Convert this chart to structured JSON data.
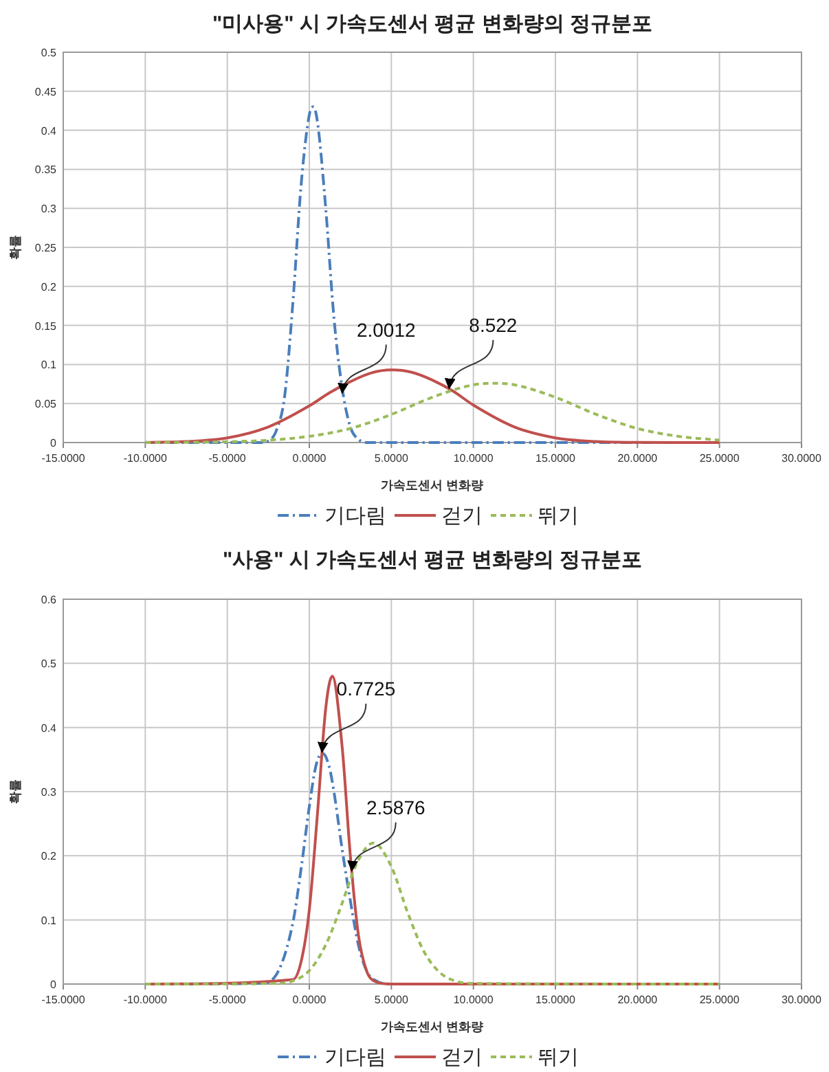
{
  "chart_data": [
    {
      "type": "line",
      "title": "\"미사용\" 시 가속도센서 평균 변화량의 정규분포",
      "xlabel": "가속도센서 변화량",
      "ylabel": "확률",
      "xlim": [
        -15,
        30
      ],
      "xticks": [
        {
          "value": -15,
          "label": "-15.0000"
        },
        {
          "value": -10,
          "label": "-10.0000"
        },
        {
          "value": -5,
          "label": "-5.0000"
        },
        {
          "value": 0,
          "label": "0.0000"
        },
        {
          "value": 5,
          "label": "5.0000"
        },
        {
          "value": 10,
          "label": "10.0000"
        },
        {
          "value": 15,
          "label": "15.0000"
        },
        {
          "value": 20,
          "label": "20.0000"
        },
        {
          "value": 25,
          "label": "25.0000"
        },
        {
          "value": 30,
          "label": "30.0000"
        }
      ],
      "ylim": [
        0,
        0.5
      ],
      "yticks": [
        0,
        0.05,
        0.1,
        0.15,
        0.2,
        0.25,
        0.3,
        0.35,
        0.4,
        0.45,
        0.5
      ],
      "grid": true,
      "legend": "bottom",
      "series": [
        {
          "name": "기다림",
          "color": "#4a7ebb",
          "line_style": "dashdot",
          "x": [
            -10,
            -3,
            -2.5,
            -2,
            -1.5,
            -1,
            -0.5,
            0,
            0.25,
            0.5,
            1,
            1.5,
            2,
            2.5,
            3,
            3.5,
            5,
            25
          ],
          "values": [
            0,
            0,
            0.002,
            0.016,
            0.06,
            0.18,
            0.33,
            0.42,
            0.43,
            0.41,
            0.3,
            0.16,
            0.07,
            0.02,
            0.004,
            0,
            0,
            0
          ]
        },
        {
          "name": "걷기",
          "color": "#c0504d",
          "line_style": "solid",
          "x": [
            -10,
            -7.5,
            -5,
            -2.5,
            0,
            1.25,
            2.5,
            3.75,
            5,
            6.25,
            7.5,
            8.75,
            10,
            12.5,
            15,
            17.5,
            20,
            25
          ],
          "values": [
            0.0002,
            0.0013,
            0.006,
            0.02,
            0.047,
            0.064,
            0.078,
            0.089,
            0.093,
            0.09,
            0.08,
            0.066,
            0.048,
            0.02,
            0.006,
            0.0013,
            0.0002,
            0
          ]
        },
        {
          "name": "뛰기",
          "color": "#9bbb59",
          "line_style": "dashed",
          "x": [
            -10,
            -5,
            -2.5,
            0,
            2.5,
            5,
            7.5,
            10,
            11.25,
            12.5,
            15,
            17.5,
            20,
            22.5,
            25
          ],
          "values": [
            0,
            0.001,
            0.003,
            0.008,
            0.018,
            0.036,
            0.058,
            0.074,
            0.076,
            0.074,
            0.058,
            0.036,
            0.018,
            0.008,
            0.003
          ]
        }
      ],
      "annotations": [
        {
          "text": "2.0012",
          "x": 2.0012,
          "y": 0.062
        },
        {
          "text": "8.522",
          "x": 8.522,
          "y": 0.068
        }
      ]
    },
    {
      "type": "line",
      "title": "\"사용\" 시 가속도센서 평균 변화량의 정규분포",
      "xlabel": "가속도센서 변화량",
      "ylabel": "확률",
      "xlim": [
        -15,
        30
      ],
      "xticks": [
        {
          "value": -15,
          "label": "-15.0000"
        },
        {
          "value": -10,
          "label": "-10.0000"
        },
        {
          "value": -5,
          "label": "-5.0000"
        },
        {
          "value": 0,
          "label": "0.0000"
        },
        {
          "value": 5,
          "label": "5.0000"
        },
        {
          "value": 10,
          "label": "10.0000"
        },
        {
          "value": 15,
          "label": "15.0000"
        },
        {
          "value": 20,
          "label": "20.0000"
        },
        {
          "value": 25,
          "label": "25.0000"
        },
        {
          "value": 30,
          "label": "30.0000"
        }
      ],
      "ylim": [
        0,
        0.6
      ],
      "yticks": [
        0,
        0.1,
        0.2,
        0.3,
        0.4,
        0.5,
        0.6
      ],
      "grid": true,
      "legend": "bottom",
      "series": [
        {
          "name": "기다림",
          "color": "#4a7ebb",
          "line_style": "dashdot",
          "x": [
            -10,
            -3,
            -2,
            -1,
            -0.5,
            0,
            0.4,
            0.8,
            1.2,
            1.5,
            2,
            2.5,
            3,
            3.5,
            4,
            5,
            25
          ],
          "values": [
            0,
            0.001,
            0.015,
            0.096,
            0.18,
            0.277,
            0.34,
            0.36,
            0.34,
            0.3,
            0.21,
            0.13,
            0.06,
            0.02,
            0.006,
            0,
            0
          ]
        },
        {
          "name": "걷기",
          "color": "#c0504d",
          "line_style": "solid",
          "x": [
            -10,
            -1,
            -0.5,
            0,
            0.5,
            1,
            1.4,
            2,
            2.5,
            3,
            3.5,
            4,
            5,
            25
          ],
          "values": [
            0,
            0.007,
            0.035,
            0.116,
            0.267,
            0.43,
            0.48,
            0.37,
            0.2,
            0.075,
            0.02,
            0.004,
            0,
            0
          ]
        },
        {
          "name": "뛰기",
          "color": "#9bbb59",
          "line_style": "dashed",
          "x": [
            -10,
            -2,
            -1,
            0,
            1,
            2,
            2.5,
            3,
            3.9,
            5,
            6,
            7,
            8,
            9,
            10,
            25
          ],
          "values": [
            0,
            0.001,
            0.005,
            0.021,
            0.061,
            0.126,
            0.163,
            0.194,
            0.22,
            0.183,
            0.111,
            0.05,
            0.017,
            0.004,
            0.001,
            0
          ]
        }
      ],
      "annotations": [
        {
          "text": "0.7725",
          "x": 0.7725,
          "y": 0.36
        },
        {
          "text": "2.5876",
          "x": 2.5876,
          "y": 0.175
        }
      ]
    }
  ]
}
